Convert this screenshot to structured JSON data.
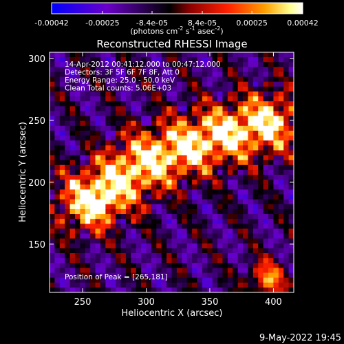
{
  "chart_data": {
    "type": "heatmap",
    "title": "Reconstructed RHESSI Image",
    "xlabel": "Heliocentric X (arcsec)",
    "ylabel": "Heliocentric Y (arcsec)",
    "xlim": [
      224,
      416
    ],
    "ylim": [
      111,
      305
    ],
    "x_ticks": [
      250,
      300,
      350,
      400
    ],
    "y_ticks": [
      150,
      200,
      250,
      300
    ],
    "colorbar": {
      "tick_labels": [
        "-0.00042",
        "-0.00025",
        "-8.4e-05",
        "8.4e-05",
        "0.00025",
        "0.00042"
      ],
      "tick_values": [
        -0.00042,
        -0.00025,
        -8.4e-05,
        8.4e-05,
        0.00025,
        0.00042
      ],
      "range": [
        -0.00042,
        0.00042
      ],
      "label_main": "(photons cm",
      "label_sup1": "-2",
      "label_mid": " s",
      "label_sup2": "-1",
      "label_end": " asec",
      "label_sup3": "-2",
      "label_close": ")",
      "colors": [
        "#0000ff",
        "#6a00c8",
        "#000000",
        "#8b0000",
        "#ff2000",
        "#ffa000",
        "#ffff90",
        "#ffffff"
      ]
    },
    "annotations": [
      "14-Apr-2012 00:41:12.000 to 00:47:12.000",
      "Detectors: 3F 5F 6F 7F 8F, Att 0",
      "Energy Range: 25.0 - 50.0 keV",
      "Clean    Total counts: 5.06E+03"
    ],
    "peak_label": "Position of Peak = [265,181]",
    "peak": [
      265,
      181
    ],
    "source": {
      "ridge": [
        [
          255,
          184
        ],
        [
          300,
          215
        ],
        [
          345,
          233
        ],
        [
          395,
          247
        ]
      ],
      "blob_tail": [
        395,
        120
      ]
    },
    "grid": false
  },
  "footer": {
    "timestamp": "9-May-2022 19:45"
  }
}
